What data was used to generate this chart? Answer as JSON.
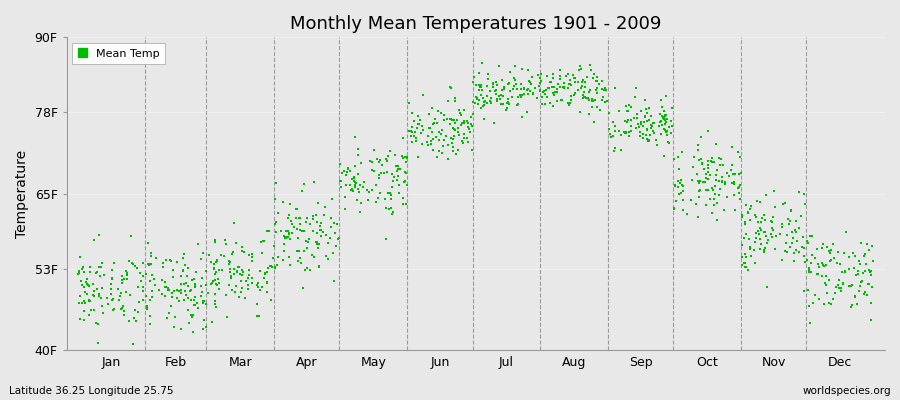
{
  "title": "Monthly Mean Temperatures 1901 - 2009",
  "ylabel": "Temperature",
  "xlabel_bottom_left": "Latitude 36.25 Longitude 25.75",
  "xlabel_bottom_right": "worldspecies.org",
  "legend_label": "Mean Temp",
  "dot_color": "#00bb00",
  "background_color": "#e8e8e8",
  "plot_bg_color": "#e8e8e8",
  "ylim": [
    40,
    90
  ],
  "yticks": [
    40,
    53,
    65,
    78,
    90
  ],
  "ytick_labels": [
    "40F",
    "53F",
    "65F",
    "78F",
    "90F"
  ],
  "month_labels": [
    "Jan",
    "Feb",
    "Mar",
    "Apr",
    "May",
    "Jun",
    "Jul",
    "Aug",
    "Sep",
    "Oct",
    "Nov",
    "Dec"
  ],
  "n_years": 109,
  "monthly_means_F": [
    49.5,
    49.5,
    52.5,
    58.5,
    67.5,
    75.5,
    81.5,
    81.5,
    76.0,
    67.5,
    58.5,
    52.5
  ],
  "monthly_stds_F": [
    3.2,
    3.2,
    3.2,
    3.2,
    2.8,
    2.2,
    1.8,
    1.8,
    2.2,
    2.8,
    3.2,
    3.2
  ],
  "month_day_counts": [
    31,
    28,
    31,
    30,
    31,
    30,
    31,
    31,
    30,
    31,
    30,
    31
  ],
  "total_days": 365,
  "spine_color": "#999999",
  "dashed_line_color": "#888888",
  "dot_size": 3
}
